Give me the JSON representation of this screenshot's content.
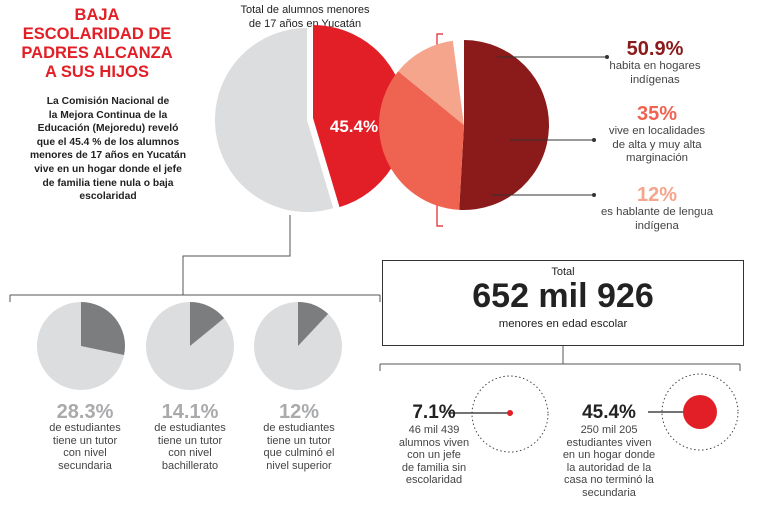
{
  "headline": "BAJA\nESCOLARIDAD DE\nPADRES ALCANZA\nA SUS HIJOS",
  "intro": "La Comisión Nacional de\nla Mejora Continua de la\nEducación (Mejoredu) reveló\nque el 45.4 % de los alumnos\nmenores de 17 años en Yucatán\nvive en un hogar donde el jefe\nde familia tiene nula o baja\nescolaridad",
  "colors": {
    "red": "#e21f26",
    "gray": "#dcdddf",
    "dark_gray": "#7c7d7f",
    "maroon": "#8b1a1a",
    "orange": "#ef6450",
    "peach": "#f4a58c",
    "gray_text": "#a9aaac"
  },
  "chart_data": [
    {
      "type": "pie",
      "title": "Total de alumnos menores\nde 17 años en Yucatán",
      "slices": [
        {
          "label": "45.4%",
          "value": 45.4,
          "color": "#e21f26"
        },
        {
          "label": "",
          "value": 54.6,
          "color": "#dcdddf"
        }
      ]
    },
    {
      "type": "pie",
      "title": "",
      "slices": [
        {
          "label": "50.9%",
          "caption": "habita en hogares\nindígenas",
          "value": 50.9,
          "color": "#8b1a1a"
        },
        {
          "label": "35%",
          "caption": "vive en localidades\nde alta y muy alta\nmarginación",
          "value": 35,
          "color": "#ef6450"
        },
        {
          "label": "12%",
          "caption": "es hablante de lengua\nindígena",
          "value": 12,
          "color": "#f4a58c"
        }
      ]
    },
    {
      "type": "pie",
      "title": "",
      "small_multiples": [
        {
          "label": "28.3%",
          "caption": "de estudiantes\ntiene un tutor\ncon nivel\nsecundaria",
          "value": 28.3
        },
        {
          "label": "14.1%",
          "caption": "de estudiantes\ntiene un tutor\ncon nivel\nbachillerato",
          "value": 14.1
        },
        {
          "label": "12%",
          "caption": "de estudiantes\ntiene un tutor\nque culminó el\nnivel superior",
          "value": 12
        }
      ]
    }
  ],
  "total": {
    "label": "Total",
    "value": "652 mil 926",
    "caption": "menores en edad escolar"
  },
  "bottom_stats": [
    {
      "pct": "7.1%",
      "value": 7.1,
      "caption": "46 mil 439\nalumnos viven\ncon un jefe\nde familia sin\nescolaridad"
    },
    {
      "pct": "45.4%",
      "value": 45.4,
      "caption": "250 mil 205\nestudiantes viven\nen un hogar donde\nla autoridad de la\ncasa no terminó la\nsecundaria"
    }
  ]
}
